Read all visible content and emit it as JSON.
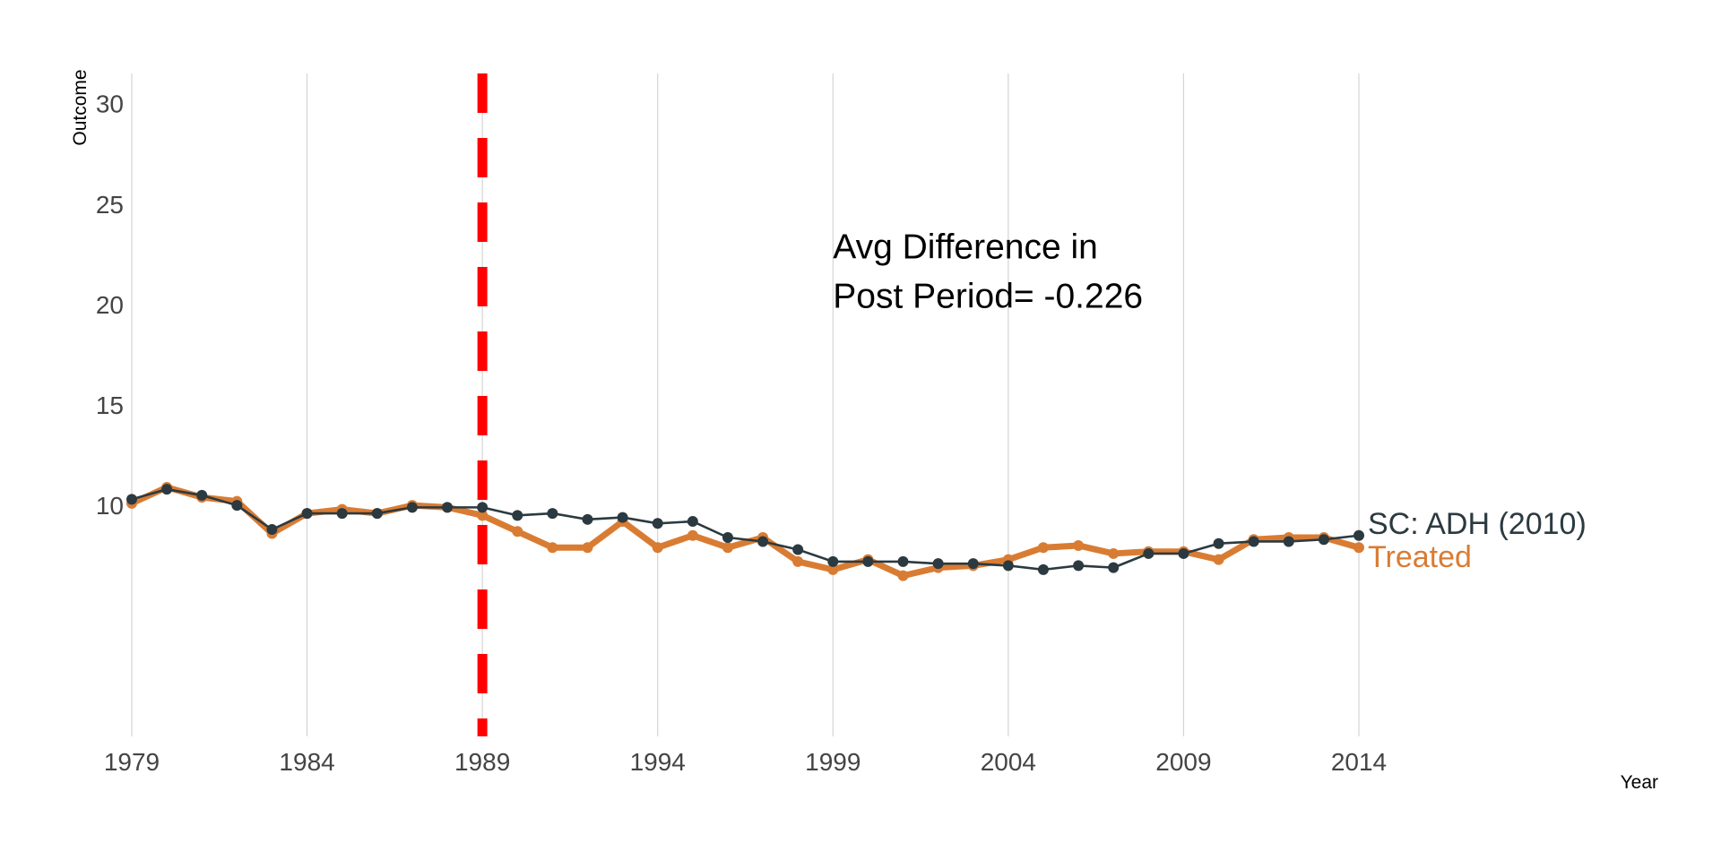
{
  "chart_data": {
    "type": "line",
    "title": "",
    "xlabel": "Year",
    "ylabel": "Outcome",
    "xlim": [
      1979,
      2014
    ],
    "ylim": [
      -1.5,
      31.5
    ],
    "x_ticks": [
      1979,
      1984,
      1989,
      1994,
      1999,
      2004,
      2009,
      2014
    ],
    "y_ticks": [
      10,
      15,
      20,
      25,
      30
    ],
    "grid": "vertical",
    "treatment_year": 1989,
    "treatment_line_color": "#ff0000",
    "annotation": {
      "line1": "Avg Difference in",
      "line2": "Post Period= -0.226",
      "x": 1999,
      "y": 22.3
    },
    "x": [
      1979,
      1980,
      1981,
      1982,
      1983,
      1984,
      1985,
      1986,
      1987,
      1988,
      1989,
      1990,
      1991,
      1992,
      1993,
      1994,
      1995,
      1996,
      1997,
      1998,
      1999,
      2000,
      2001,
      2002,
      2003,
      2004,
      2005,
      2006,
      2007,
      2008,
      2009,
      2010,
      2011,
      2012,
      2013,
      2014
    ],
    "series": [
      {
        "name": "Treated",
        "color": "#d97c33",
        "values": [
          10.1,
          10.9,
          10.4,
          10.2,
          8.6,
          9.6,
          9.8,
          9.6,
          10.0,
          9.9,
          9.5,
          8.7,
          7.9,
          7.9,
          9.2,
          7.9,
          8.5,
          7.9,
          8.4,
          7.2,
          6.8,
          7.3,
          6.5,
          6.9,
          7.0,
          7.3,
          7.9,
          8.0,
          7.6,
          7.7,
          7.7,
          7.3,
          8.3,
          8.4,
          8.4,
          7.9
        ]
      },
      {
        "name": "SC: ADH (2010)",
        "color": "#2b3a40",
        "values": [
          10.3,
          10.8,
          10.5,
          10.0,
          8.8,
          9.6,
          9.6,
          9.6,
          9.9,
          9.9,
          9.9,
          9.5,
          9.6,
          9.3,
          9.4,
          9.1,
          9.2,
          8.4,
          8.2,
          7.8,
          7.2,
          7.2,
          7.2,
          7.1,
          7.1,
          7.0,
          6.8,
          7.0,
          6.9,
          7.6,
          7.6,
          8.1,
          8.2,
          8.2,
          8.3,
          8.5
        ]
      }
    ]
  }
}
